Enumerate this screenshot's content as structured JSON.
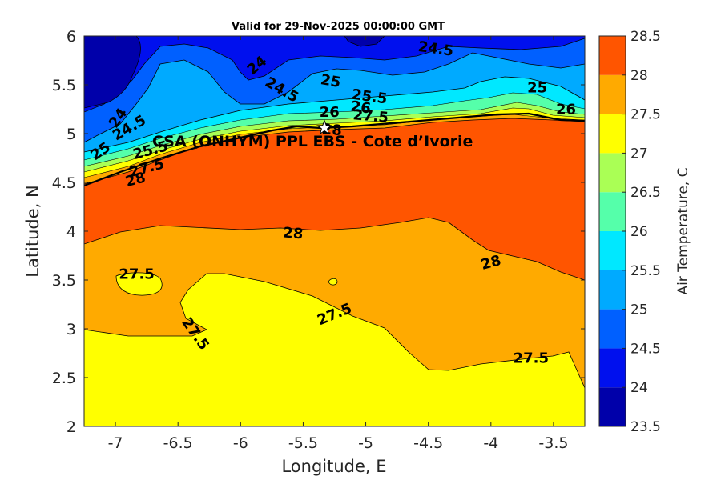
{
  "chart_data": {
    "type": "contour",
    "title": "Valid for 29-Nov-2025 00:00:00 GMT",
    "xlabel": "Longitude, E",
    "ylabel": "Latitude, N",
    "xlim": [
      -7.25,
      -3.25
    ],
    "ylim": [
      2,
      6
    ],
    "xticks": [
      -7,
      -6.5,
      -6,
      -5.5,
      -5,
      -4.5,
      -4,
      -3.5
    ],
    "xtick_labels": [
      "-7",
      "-6.5",
      "-6",
      "-5.5",
      "-5",
      "-4.5",
      "-4",
      "-3.5"
    ],
    "yticks": [
      2,
      2.5,
      3,
      3.5,
      4,
      4.5,
      5,
      5.5,
      6
    ],
    "ytick_labels": [
      "2",
      "2.5",
      "3",
      "3.5",
      "4",
      "4.5",
      "5",
      "5.5",
      "6"
    ],
    "colorbar": {
      "label": "Air Temperature, C",
      "range": [
        23.5,
        28.5
      ],
      "ticks": [
        23.5,
        24,
        24.5,
        25,
        25.5,
        26,
        26.5,
        27,
        27.5,
        28,
        28.5
      ],
      "tick_labels": [
        "23.5",
        "24",
        "24.5",
        "25",
        "25.5",
        "26",
        "26.5",
        "27",
        "27.5",
        "28",
        "28.5"
      ],
      "colors": [
        "#0000AA",
        "#0010EE",
        "#0060FF",
        "#00AAFF",
        "#00E8FF",
        "#55FFAA",
        "#AAFF55",
        "#FFFF00",
        "#FFAA00",
        "#FF5500",
        "#FF0000"
      ]
    },
    "station": {
      "label": "CSA (ONHYM) PPL EBS  - Cote d’Ivorie",
      "lon": -5.33,
      "lat": 5.06,
      "marker": "star"
    },
    "contour_labels": [
      {
        "text": "24",
        "lon": -5.87,
        "lat": 5.7,
        "angle": 40
      },
      {
        "text": "24.5",
        "lon": -4.44,
        "lat": 5.87,
        "angle": -8
      },
      {
        "text": "24.5",
        "lon": -5.67,
        "lat": 5.45,
        "angle": -30
      },
      {
        "text": "25",
        "lon": -5.28,
        "lat": 5.54,
        "angle": -10
      },
      {
        "text": "25.5",
        "lon": -4.97,
        "lat": 5.38,
        "angle": -8
      },
      {
        "text": "26",
        "lon": -5.29,
        "lat": 5.22,
        "angle": 0
      },
      {
        "text": "26",
        "lon": -5.04,
        "lat": 5.27,
        "angle": -8
      },
      {
        "text": "27.5",
        "lon": -4.96,
        "lat": 5.18,
        "angle": -5
      },
      {
        "text": "28",
        "lon": -5.27,
        "lat": 5.04,
        "angle": -5
      },
      {
        "text": "25",
        "lon": -3.63,
        "lat": 5.47,
        "angle": 0
      },
      {
        "text": "26",
        "lon": -3.4,
        "lat": 5.25,
        "angle": 0
      },
      {
        "text": "24",
        "lon": -6.98,
        "lat": 5.16,
        "angle": 55
      },
      {
        "text": "24.5",
        "lon": -6.89,
        "lat": 5.06,
        "angle": 30
      },
      {
        "text": "25",
        "lon": -7.12,
        "lat": 4.82,
        "angle": 35
      },
      {
        "text": "25.5",
        "lon": -6.72,
        "lat": 4.83,
        "angle": 15
      },
      {
        "text": "27.5",
        "lon": -6.75,
        "lat": 4.65,
        "angle": 15
      },
      {
        "text": "28",
        "lon": -6.84,
        "lat": 4.53,
        "angle": 15
      },
      {
        "text": "28",
        "lon": -5.58,
        "lat": 3.98,
        "angle": -5
      },
      {
        "text": "28",
        "lon": -4.0,
        "lat": 3.68,
        "angle": 15
      },
      {
        "text": "27.5",
        "lon": -6.83,
        "lat": 3.56,
        "angle": 0
      },
      {
        "text": "27.5",
        "lon": -6.36,
        "lat": 2.95,
        "angle": -55
      },
      {
        "text": "27.5",
        "lon": -5.25,
        "lat": 3.15,
        "angle": 22
      },
      {
        "text": "27.5",
        "lon": -3.68,
        "lat": 2.7,
        "angle": 0
      }
    ]
  }
}
